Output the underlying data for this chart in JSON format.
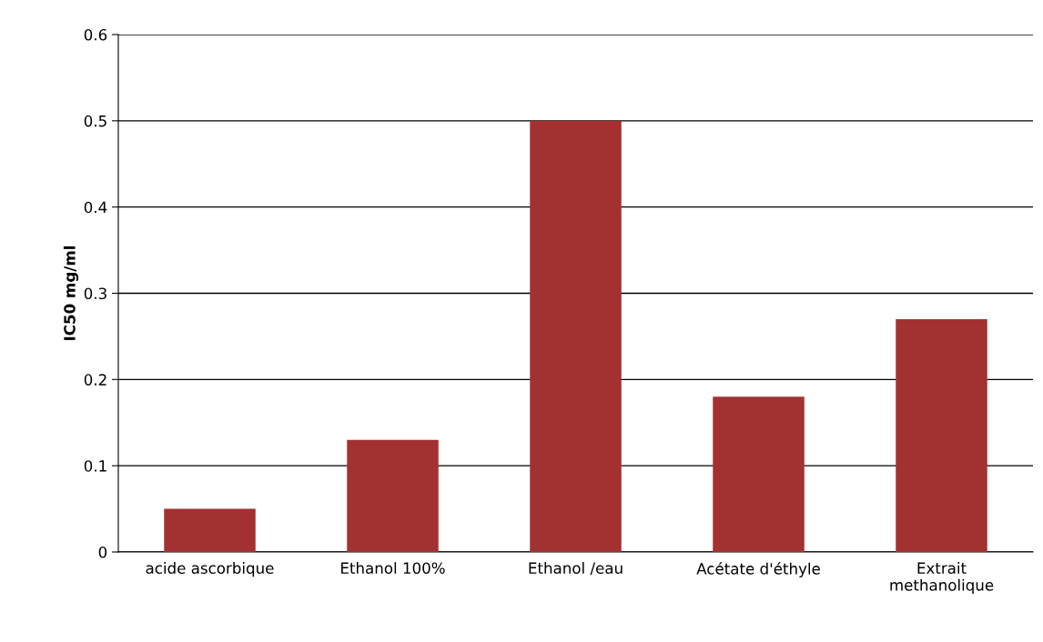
{
  "chart_data": {
    "type": "bar",
    "ylabel": "IC50 mg/ml",
    "categories": [
      "acide ascorbique",
      "Ethanol 100%",
      "Ethanol /eau",
      "Acétate d'éthyle",
      "Extrait\nmethanolique"
    ],
    "values": [
      0.05,
      0.13,
      0.5,
      0.18,
      0.27
    ],
    "color": "#a33131",
    "ylim": [
      0,
      0.6
    ],
    "yticks": [
      {
        "value": 0,
        "label": "0"
      },
      0.1,
      0.2,
      0.3,
      0.4,
      0.5,
      0.6
    ],
    "grid": "y",
    "legend": false
  }
}
